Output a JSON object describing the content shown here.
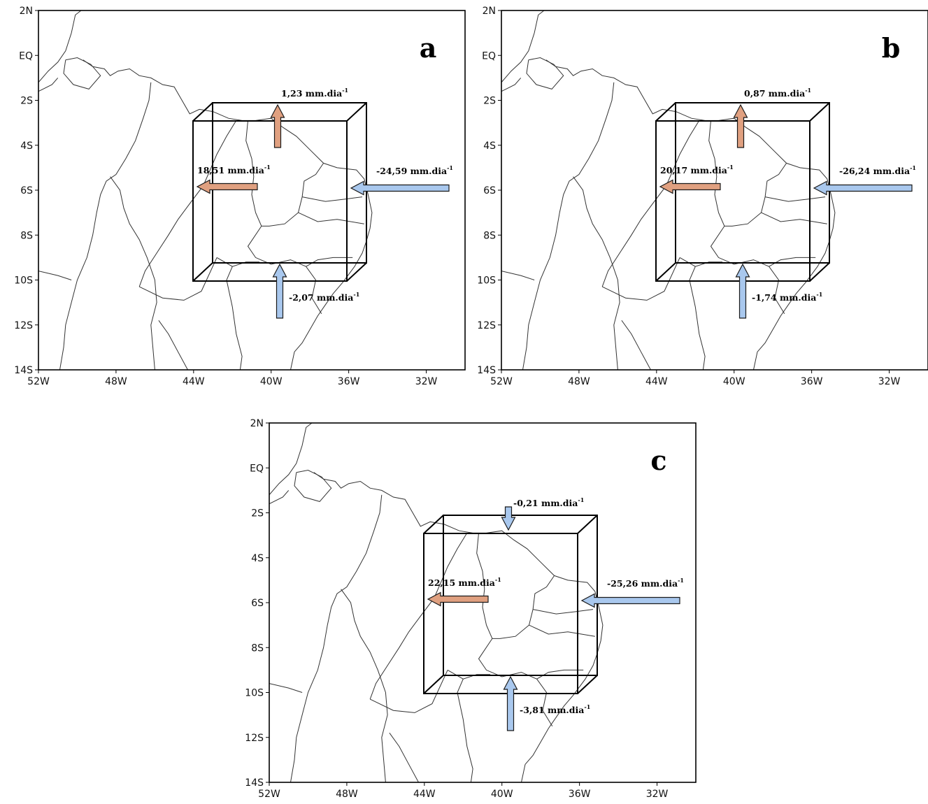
{
  "figure": {
    "lat_ticks": [
      "2N",
      "EQ",
      "2S",
      "4S",
      "6S",
      "8S",
      "10S",
      "12S",
      "14S"
    ],
    "lon_ticks": [
      "52W",
      "48W",
      "44W",
      "40W",
      "36W",
      "32W"
    ],
    "unit_text": "mm.dia",
    "unit_superscript": "-1",
    "colors": {
      "outflow_arrow": "#e0a080",
      "inflow_arrow": "#a9c8ee",
      "arrow_stroke": "#1a1a1a"
    }
  },
  "panels": [
    {
      "label": "a",
      "fluxes": {
        "north": {
          "value": "1,23",
          "direction": "outflow"
        },
        "west": {
          "value": "18,51",
          "direction": "outflow"
        },
        "east": {
          "value": "-24,59",
          "direction": "inflow"
        },
        "south": {
          "value": "-2,07",
          "direction": "inflow"
        }
      }
    },
    {
      "label": "b",
      "fluxes": {
        "north": {
          "value": "0,87",
          "direction": "outflow"
        },
        "west": {
          "value": "20,17",
          "direction": "outflow"
        },
        "east": {
          "value": "-26,24",
          "direction": "inflow"
        },
        "south": {
          "value": "-1,74",
          "direction": "inflow"
        }
      }
    },
    {
      "label": "c",
      "fluxes": {
        "north": {
          "value": "-0,21",
          "direction": "inflow"
        },
        "west": {
          "value": "22,15",
          "direction": "outflow"
        },
        "east": {
          "value": "-25,26",
          "direction": "inflow"
        },
        "south": {
          "value": "-3,81",
          "direction": "inflow"
        }
      }
    }
  ]
}
